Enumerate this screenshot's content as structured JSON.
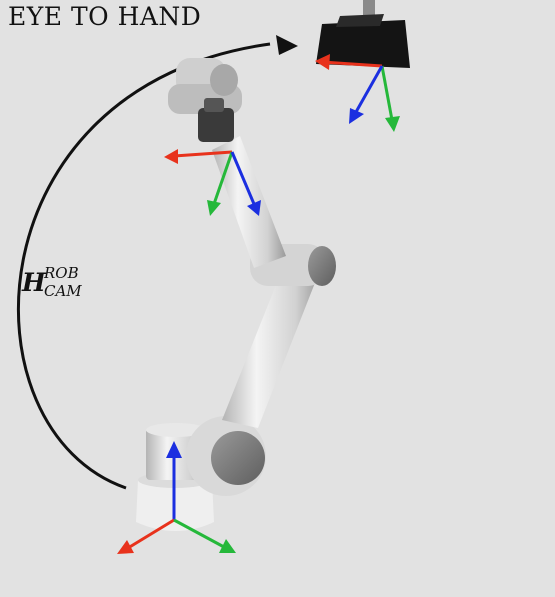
{
  "title": "EYE TO HAND",
  "transform": {
    "symbol": "H",
    "superscript": "ROB",
    "subscript": "CAM"
  },
  "colors": {
    "x_axis": "#e8321c",
    "y_axis": "#25b83a",
    "z_axis": "#1b2fe0",
    "background": "#e2e2e2",
    "camera": "#141414"
  },
  "frames": [
    {
      "name": "camera-frame",
      "axes": [
        "x",
        "y",
        "z"
      ]
    },
    {
      "name": "gripper-frame",
      "axes": [
        "x",
        "y",
        "z"
      ]
    },
    {
      "name": "base-frame",
      "axes": [
        "x",
        "y",
        "z"
      ]
    }
  ]
}
